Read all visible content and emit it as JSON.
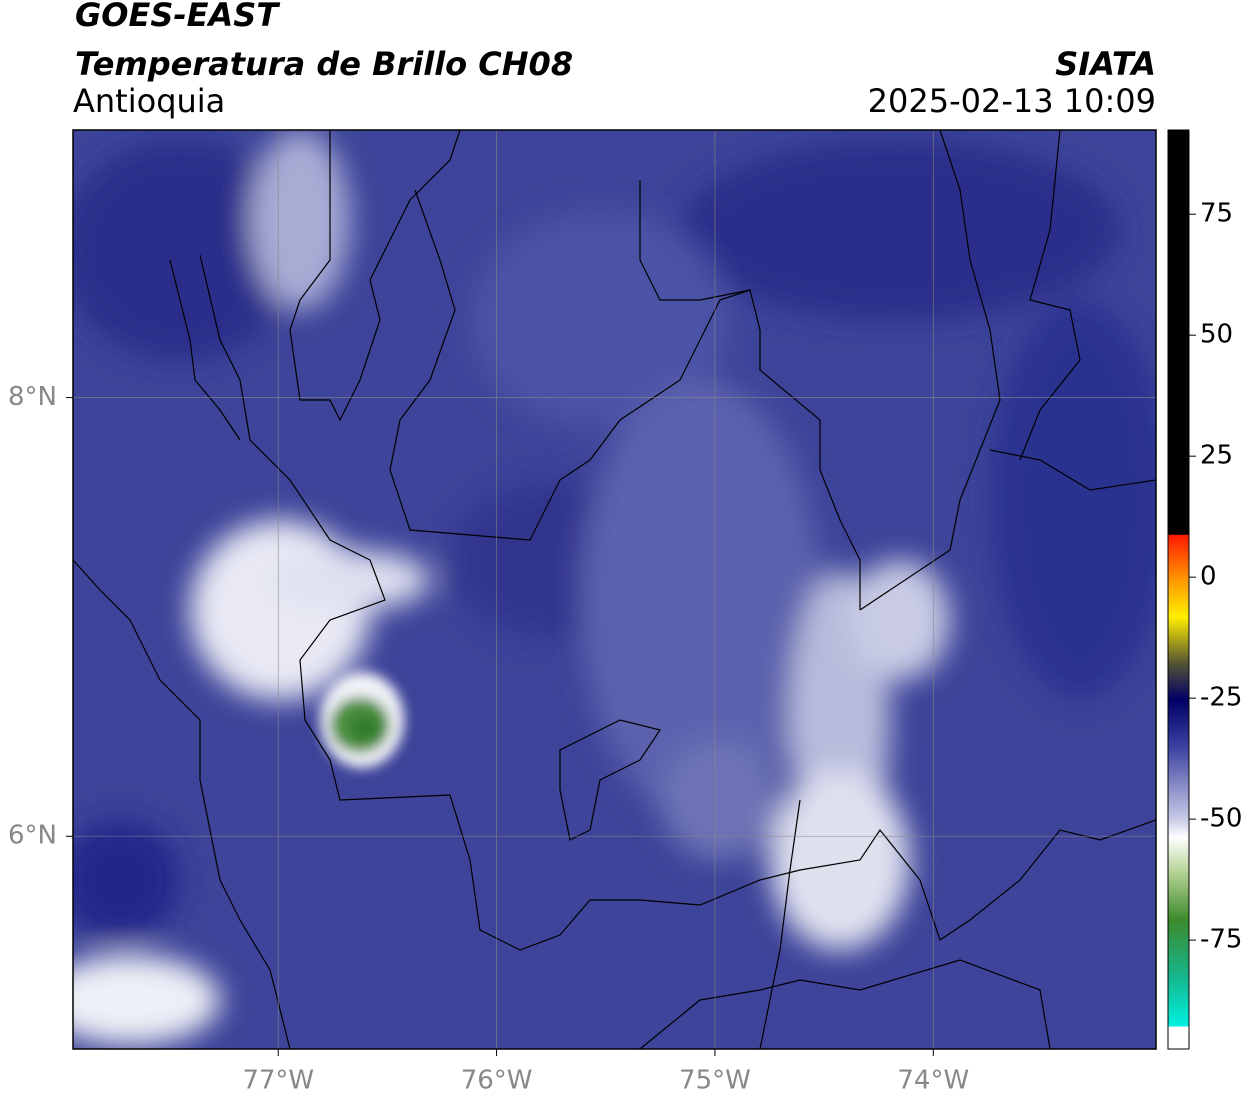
{
  "header": {
    "title": "GOES-EAST",
    "subtitle": "Temperatura de Brillo CH08",
    "region": "Antioquia",
    "agency": "SIATA",
    "datetime": "2025-02-13 10:09"
  },
  "map": {
    "lonlim": [
      -77.94,
      -72.98
    ],
    "latlim": [
      5.03,
      9.22
    ],
    "lon_ticks": [
      {
        "value": -77,
        "label": "77°W"
      },
      {
        "value": -76,
        "label": "76°W"
      },
      {
        "value": -75,
        "label": "75°W"
      },
      {
        "value": -74,
        "label": "74°W"
      }
    ],
    "lat_ticks": [
      {
        "value": 8,
        "label": "8°N"
      },
      {
        "value": 6,
        "label": "6°N"
      }
    ]
  },
  "colorbar": {
    "lim": [
      -97.5,
      92.4
    ],
    "ticks": [
      75,
      50,
      25,
      0,
      -25,
      -50,
      -75
    ]
  }
}
